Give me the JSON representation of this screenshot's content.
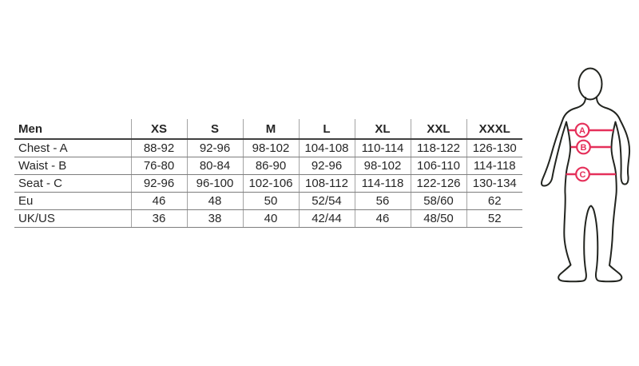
{
  "table": {
    "header": [
      "Men",
      "XS",
      "S",
      "M",
      "L",
      "XL",
      "XXL",
      "XXXL"
    ],
    "rows": [
      {
        "label": "Chest - A",
        "values": [
          "88-92",
          "92-96",
          "98-102",
          "104-108",
          "110-114",
          "118-122",
          "126-130"
        ]
      },
      {
        "label": "Waist - B",
        "values": [
          "76-80",
          "80-84",
          "86-90",
          "92-96",
          "98-102",
          "106-110",
          "114-118"
        ]
      },
      {
        "label": "Seat - C",
        "values": [
          "92-96",
          "96-100",
          "102-106",
          "108-112",
          "114-118",
          "122-126",
          "130-134"
        ]
      },
      {
        "label": "Eu",
        "values": [
          "46",
          "48",
          "50",
          "52/54",
          "56",
          "58/60",
          "62"
        ]
      },
      {
        "label": "UK/US",
        "values": [
          "36",
          "38",
          "40",
          "42/44",
          "46",
          "48/50",
          "52"
        ]
      }
    ]
  },
  "figure": {
    "markers": {
      "a": "A",
      "b": "B",
      "c": "C"
    },
    "accent_color": "#e5305a",
    "outline_color": "#22241f"
  },
  "chart_data": {
    "type": "table",
    "title": "",
    "columns": [
      "Men",
      "XS",
      "S",
      "M",
      "L",
      "XL",
      "XXL",
      "XXXL"
    ],
    "rows": [
      [
        "Chest - A",
        "88-92",
        "92-96",
        "98-102",
        "104-108",
        "110-114",
        "118-122",
        "126-130"
      ],
      [
        "Waist - B",
        "76-80",
        "80-84",
        "86-90",
        "92-96",
        "98-102",
        "106-110",
        "114-118"
      ],
      [
        "Seat - C",
        "92-96",
        "96-100",
        "102-106",
        "108-112",
        "114-118",
        "122-126",
        "130-134"
      ],
      [
        "Eu",
        "46",
        "48",
        "50",
        "52/54",
        "56",
        "58/60",
        "62"
      ],
      [
        "UK/US",
        "36",
        "38",
        "40",
        "42/44",
        "46",
        "48/50",
        "52"
      ]
    ],
    "annotations": [
      "A = chest line marker",
      "B = waist line marker",
      "C = seat line marker"
    ]
  }
}
